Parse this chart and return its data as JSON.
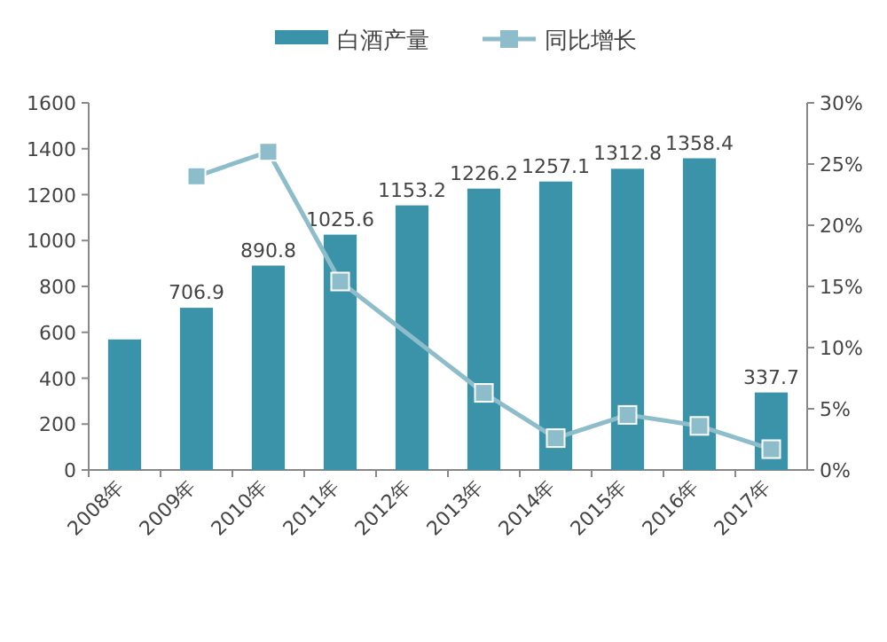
{
  "chart_data": {
    "type": "bar",
    "categories": [
      "2008年",
      "2009年",
      "2010年",
      "2011年",
      "2012年",
      "2013年",
      "2014年",
      "2015年",
      "2016年",
      "2017年"
    ],
    "series": [
      {
        "name": "白酒产量",
        "color": "#3a93a8",
        "values": [
          569,
          706.9,
          890.8,
          1025.6,
          1153.2,
          1226.2,
          1257.1,
          1312.8,
          1358.4,
          337.7
        ],
        "value_labels": [
          null,
          "706.9",
          "890.8",
          "1025.6",
          "1153.2",
          "1226.2",
          "1257.1",
          "1312.8",
          "1358.4",
          "337.7"
        ]
      },
      {
        "name": "同比增长",
        "type": "line",
        "axis": "y2",
        "color": "#8dbccb",
        "marker": "square",
        "values": [
          null,
          24.0,
          26.0,
          15.4,
          null,
          6.3,
          2.6,
          4.5,
          3.6,
          1.7
        ]
      }
    ],
    "ylim": [
      0,
      1600
    ],
    "yticks": [
      0,
      200,
      400,
      600,
      800,
      1000,
      1200,
      1400,
      1600
    ],
    "y2lim": [
      0,
      30
    ],
    "y2ticks": [
      {
        "value": 0,
        "label": "0%"
      },
      {
        "value": 5,
        "label": "5%"
      },
      {
        "value": 10,
        "label": "10%"
      },
      {
        "value": 15,
        "label": "15%"
      },
      {
        "value": 20,
        "label": "20%"
      },
      {
        "value": 25,
        "label": "25%"
      },
      {
        "value": 30,
        "label": "30%"
      }
    ],
    "legend": "top",
    "grid": false
  }
}
